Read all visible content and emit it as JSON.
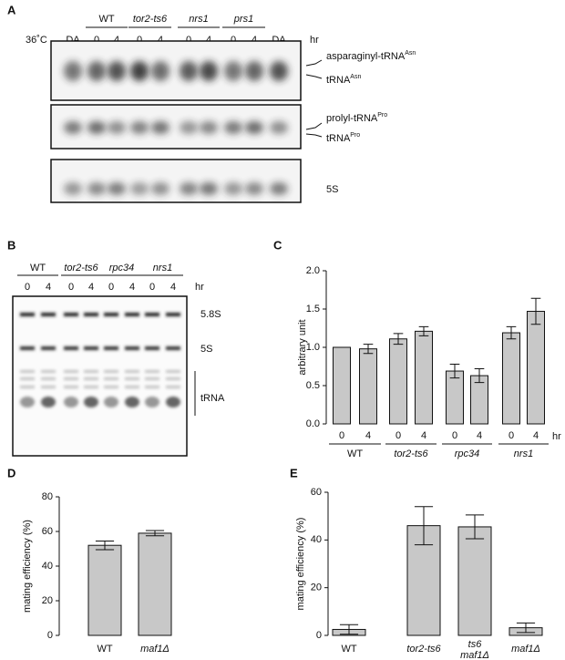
{
  "gels": [
    {
      "label": "A",
      "condition": "36˚C",
      "control": "DA",
      "groups": [
        "WT",
        "tor2-ts6",
        "nrs1",
        "prs1"
      ],
      "italic": [
        false,
        true,
        true,
        true
      ],
      "times": [
        "0",
        "4"
      ],
      "unit": "hr",
      "bands": [
        {
          "text": "asparaginyl-tRNA",
          "sup": "Asn"
        },
        {
          "text": "tRNA",
          "sup": "Asn"
        },
        {
          "text": "prolyl-tRNA",
          "sup": "Pro"
        },
        {
          "text": "tRNA",
          "sup": "Pro"
        },
        {
          "text": "5S"
        }
      ]
    },
    {
      "label": "B",
      "groups": [
        "WT",
        "tor2-ts6",
        "rpc34",
        "nrs1"
      ],
      "italic": [
        false,
        true,
        true,
        true
      ],
      "times": [
        "0",
        "4"
      ],
      "unit": "hr",
      "bands": [
        {
          "text": "5.8S"
        },
        {
          "text": "5S"
        },
        {
          "text": "tRNA"
        }
      ]
    }
  ],
  "chart_data": [
    {
      "type": "bar",
      "panel_label": "C",
      "y_label": "arbitrary unit",
      "color": "#c8c8c8",
      "categories": [
        "0",
        "4",
        "0",
        "4",
        "0",
        "4",
        "0",
        "4"
      ],
      "groups": [
        "WT",
        "tor2-ts6",
        "rpc34",
        "nrs1"
      ],
      "italic": [
        false,
        true,
        true,
        true
      ],
      "unit": "hr",
      "values": [
        1.0,
        0.98,
        1.11,
        1.21,
        0.69,
        0.63,
        1.19,
        1.47
      ],
      "errors": [
        0,
        0.06,
        0.07,
        0.06,
        0.09,
        0.09,
        0.08,
        0.17
      ],
      "ylim": [
        0,
        2.0
      ],
      "yticks": [
        {
          "value": 0,
          "label": "0.0"
        },
        {
          "value": 0.5,
          "label": "0.5"
        },
        {
          "value": 1.0,
          "label": "1.0"
        },
        {
          "value": 1.5,
          "label": "1.5"
        },
        {
          "value": 2.0,
          "label": "2.0"
        }
      ]
    },
    {
      "type": "bar",
      "panel_label": "D",
      "y_label": "mating efficiency (%)",
      "color": "#c8c8c8",
      "categories": [
        "WT",
        "maf1Δ"
      ],
      "italic": [
        false,
        true
      ],
      "values": [
        52,
        59
      ],
      "errors": [
        2.5,
        1.5
      ],
      "ylim": [
        0,
        80
      ],
      "yticks": [
        0,
        20,
        40,
        60,
        80
      ]
    },
    {
      "type": "bar",
      "panel_label": "E",
      "y_label": "mating efficiency (%)",
      "color": "#c8c8c8",
      "categories": [
        "WT",
        "tor2-ts6",
        "ts6 maf1Δ",
        "maf1Δ"
      ],
      "italic": [
        false,
        true,
        true,
        true
      ],
      "values": [
        2.5,
        46,
        45.5,
        3.2
      ],
      "errors": [
        2,
        8,
        5,
        2
      ],
      "ylim": [
        0,
        60
      ],
      "yticks": [
        0,
        20,
        40,
        60
      ]
    }
  ]
}
